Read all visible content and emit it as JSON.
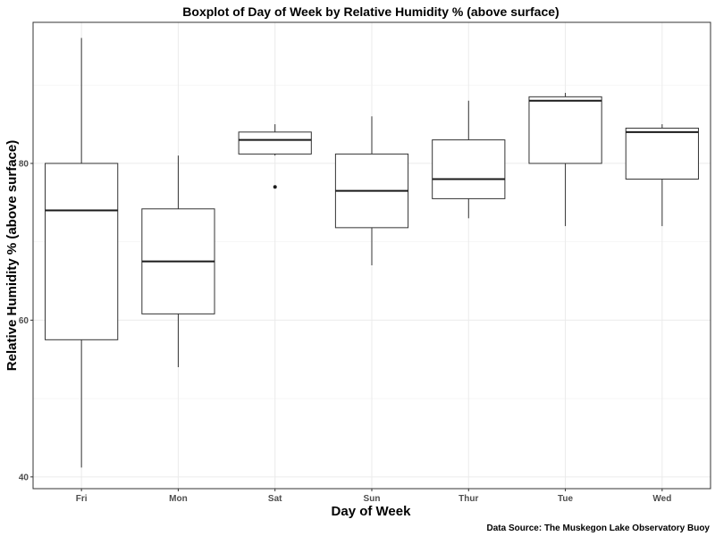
{
  "chart_data": {
    "type": "boxplot",
    "title": "Boxplot of Day of Week by Relative Humidity % (above surface)",
    "xlabel": "Day of Week",
    "ylabel": "Relative Humidity % (above surface)",
    "caption": "Data Source: The Muskegon Lake Observatory Buoy",
    "ylim": [
      38.5,
      98
    ],
    "yticks": [
      40,
      60,
      80
    ],
    "grid": true,
    "categories": [
      "Fri",
      "Mon",
      "Sat",
      "Sun",
      "Thur",
      "Tue",
      "Wed"
    ],
    "boxes": [
      {
        "category": "Fri",
        "whisker_low": 41.2,
        "q1": 57.5,
        "median": 74.0,
        "q3": 80.0,
        "whisker_high": 96.0,
        "outliers": []
      },
      {
        "category": "Mon",
        "whisker_low": 54.0,
        "q1": 60.8,
        "median": 67.5,
        "q3": 74.2,
        "whisker_high": 81.0,
        "outliers": []
      },
      {
        "category": "Sat",
        "whisker_low": 81.0,
        "q1": 81.2,
        "median": 83.0,
        "q3": 84.0,
        "whisker_high": 85.0,
        "outliers": [
          77.0
        ]
      },
      {
        "category": "Sun",
        "whisker_low": 67.0,
        "q1": 71.8,
        "median": 76.5,
        "q3": 81.2,
        "whisker_high": 86.0,
        "outliers": []
      },
      {
        "category": "Thur",
        "whisker_low": 73.0,
        "q1": 75.5,
        "median": 78.0,
        "q3": 83.0,
        "whisker_high": 88.0,
        "outliers": []
      },
      {
        "category": "Tue",
        "whisker_low": 72.0,
        "q1": 80.0,
        "median": 88.0,
        "q3": 88.5,
        "whisker_high": 89.0,
        "outliers": []
      },
      {
        "category": "Wed",
        "whisker_low": 72.0,
        "q1": 78.0,
        "median": 84.0,
        "q3": 84.5,
        "whisker_high": 85.0,
        "outliers": []
      }
    ]
  }
}
